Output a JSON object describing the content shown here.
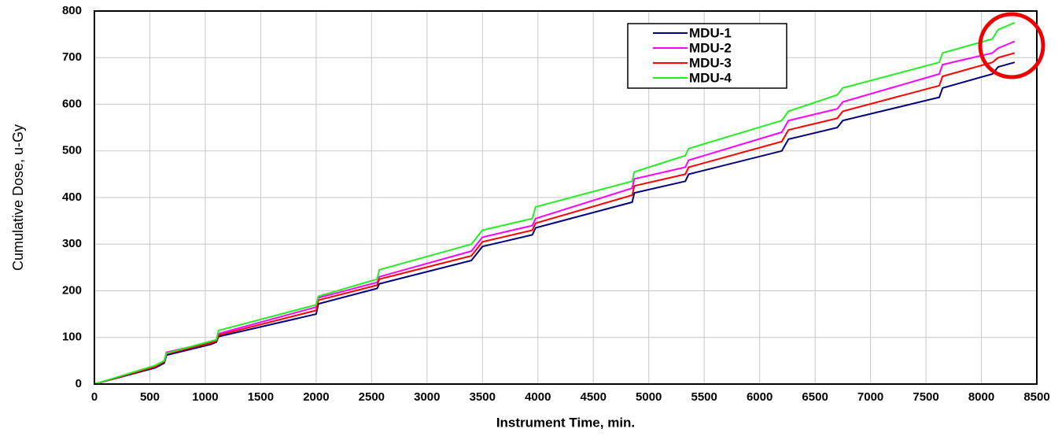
{
  "chart_data": {
    "type": "line",
    "x_label": "Instrument Time, min.",
    "y_label": "Cumulative Dose, u-Gy",
    "xlim": [
      0,
      8500
    ],
    "ylim": [
      0,
      800
    ],
    "xticks": [
      0,
      500,
      1000,
      1500,
      2000,
      2500,
      3000,
      3500,
      4000,
      4500,
      5000,
      5500,
      6000,
      6500,
      7000,
      7500,
      8000,
      8500
    ],
    "yticks": [
      0,
      100,
      200,
      300,
      400,
      500,
      600,
      700,
      800
    ],
    "grid": true,
    "legend": "upper right",
    "x": [
      0,
      550,
      630,
      650,
      1050,
      1100,
      1120,
      2000,
      2020,
      2550,
      2570,
      3400,
      3500,
      3950,
      3980,
      4850,
      4870,
      5330,
      5360,
      6200,
      6260,
      6700,
      6750,
      7620,
      7650,
      8100,
      8150,
      8300
    ],
    "series": [
      {
        "name": "MDU-1",
        "color": "#000080",
        "values": [
          0,
          35,
          45,
          62,
          85,
          90,
          102,
          150,
          172,
          205,
          215,
          265,
          295,
          320,
          335,
          390,
          410,
          435,
          450,
          500,
          525,
          550,
          565,
          615,
          635,
          665,
          680,
          690
        ]
      },
      {
        "name": "MDU-2",
        "color": "#ff00ff",
        "values": [
          0,
          38,
          50,
          68,
          90,
          95,
          108,
          165,
          185,
          218,
          230,
          285,
          315,
          340,
          355,
          420,
          440,
          465,
          480,
          540,
          565,
          590,
          605,
          665,
          685,
          710,
          720,
          735
        ]
      },
      {
        "name": "MDU-3",
        "color": "#ff0000",
        "values": [
          0,
          37,
          48,
          65,
          88,
          92,
          105,
          158,
          180,
          212,
          225,
          275,
          305,
          330,
          345,
          405,
          425,
          450,
          465,
          520,
          545,
          570,
          585,
          640,
          660,
          690,
          700,
          710
        ]
      },
      {
        "name": "MDU-4",
        "color": "#22ee22",
        "values": [
          0,
          40,
          50,
          66,
          92,
          95,
          115,
          170,
          188,
          225,
          245,
          300,
          330,
          355,
          380,
          435,
          455,
          490,
          505,
          565,
          585,
          620,
          635,
          690,
          710,
          740,
          760,
          775
        ]
      }
    ]
  }
}
